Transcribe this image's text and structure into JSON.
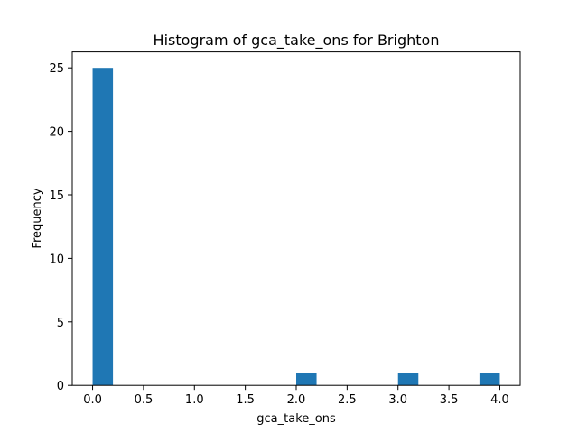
{
  "chart_data": {
    "type": "bar",
    "title": "Histogram of gca_take_ons for Brighton",
    "xlabel": "gca_take_ons",
    "ylabel": "Frequency",
    "xlim": [
      -0.2,
      4.2
    ],
    "ylim": [
      0,
      26.25
    ],
    "bar_color": "#1f77b4",
    "bins": [
      {
        "x0": 0.0,
        "x1": 0.2,
        "count": 25
      },
      {
        "x0": 2.0,
        "x1": 2.2,
        "count": 1
      },
      {
        "x0": 3.0,
        "x1": 3.2,
        "count": 1
      },
      {
        "x0": 3.8,
        "x1": 4.0,
        "count": 1
      }
    ],
    "x_ticks": [
      {
        "value": 0.0,
        "label": "0.0"
      },
      {
        "value": 0.5,
        "label": "0.5"
      },
      {
        "value": 1.0,
        "label": "1.0"
      },
      {
        "value": 1.5,
        "label": "1.5"
      },
      {
        "value": 2.0,
        "label": "2.0"
      },
      {
        "value": 2.5,
        "label": "2.5"
      },
      {
        "value": 3.0,
        "label": "3.0"
      },
      {
        "value": 3.5,
        "label": "3.5"
      },
      {
        "value": 4.0,
        "label": "4.0"
      }
    ],
    "y_ticks": [
      {
        "value": 0,
        "label": "0"
      },
      {
        "value": 5,
        "label": "5"
      },
      {
        "value": 10,
        "label": "10"
      },
      {
        "value": 15,
        "label": "15"
      },
      {
        "value": 20,
        "label": "20"
      },
      {
        "value": 25,
        "label": "25"
      }
    ],
    "grid": false,
    "legend": "none"
  }
}
